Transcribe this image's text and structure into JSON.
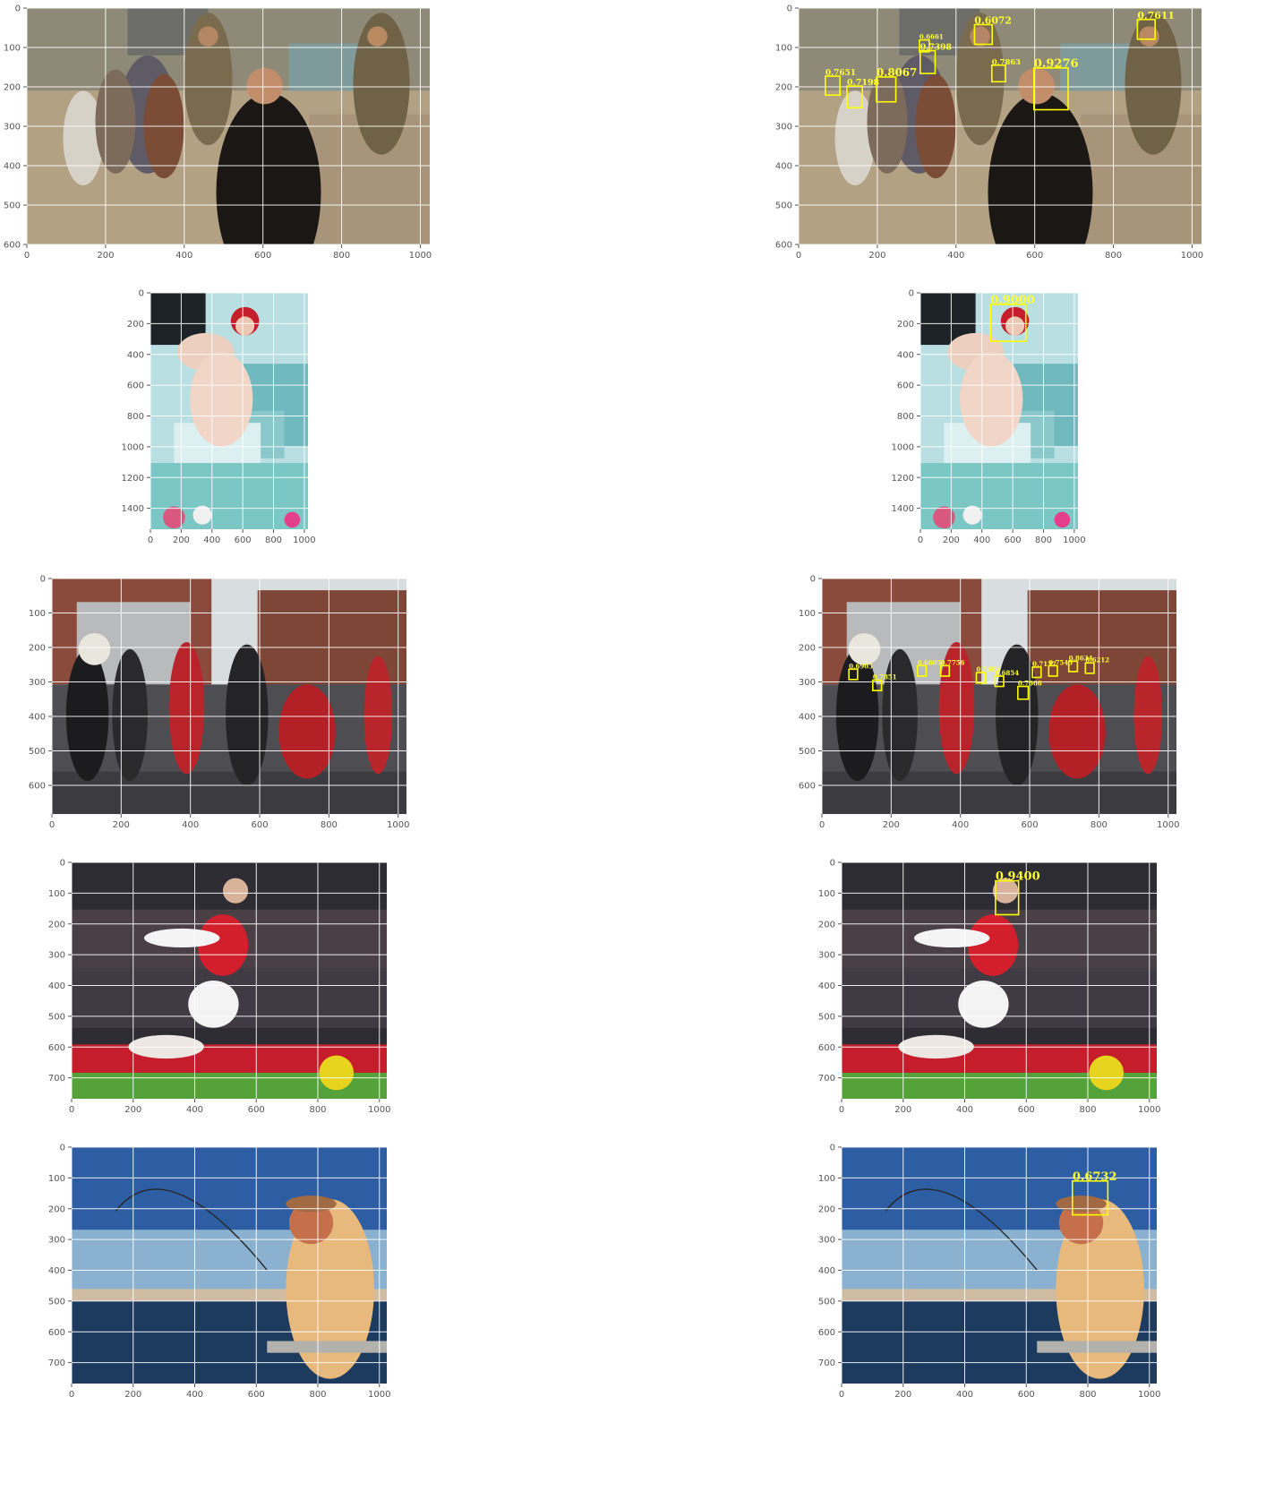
{
  "figure": {
    "background": "#ffffff",
    "grid_color": "#ffffff",
    "box_color": "#ffff00"
  },
  "rows": [
    {
      "id": "soldiers-children",
      "scene": "street-soldiers",
      "xticks": [
        0,
        200,
        400,
        600,
        800,
        1000
      ],
      "yticks": [
        0,
        100,
        200,
        300,
        400,
        500,
        600
      ],
      "xmax": 1024,
      "ymax": 600,
      "detections": [
        {
          "score": "0.6072",
          "x": 447,
          "y": 42,
          "w": 45,
          "h": 50
        },
        {
          "score": "0.7611",
          "x": 861,
          "y": 29,
          "w": 45,
          "h": 50
        },
        {
          "score": "0.6661",
          "x": 307,
          "y": 81,
          "w": 25,
          "h": 30
        },
        {
          "score": "0.7398",
          "x": 309,
          "y": 108,
          "w": 38,
          "h": 58
        },
        {
          "score": "0.7863",
          "x": 491,
          "y": 145,
          "w": 35,
          "h": 42
        },
        {
          "score": "0.9276",
          "x": 598,
          "y": 152,
          "w": 87,
          "h": 106
        },
        {
          "score": "0.7651",
          "x": 68,
          "y": 173,
          "w": 37,
          "h": 48
        },
        {
          "score": "0.8067",
          "x": 198,
          "y": 175,
          "w": 49,
          "h": 63
        },
        {
          "score": "0.7198",
          "x": 123,
          "y": 198,
          "w": 39,
          "h": 55
        }
      ]
    },
    {
      "id": "red-hair-woman",
      "scene": "bathroom",
      "xticks": [
        0,
        200,
        400,
        600,
        800,
        1000
      ],
      "yticks": [
        0,
        200,
        400,
        600,
        800,
        1000,
        1200,
        1400
      ],
      "xmax": 1024,
      "ymax": 1536,
      "detections": [
        {
          "score": "0.9000",
          "x": 455,
          "y": 75,
          "w": 230,
          "h": 240
        }
      ]
    },
    {
      "id": "brass-band",
      "scene": "alley-band",
      "xticks": [
        0,
        200,
        400,
        600,
        800,
        1000
      ],
      "yticks": [
        0,
        100,
        200,
        300,
        400,
        500,
        600
      ],
      "xmax": 1024,
      "ymax": 683,
      "detections": [
        {
          "score": "0.6905",
          "x": 78,
          "y": 263,
          "w": 25,
          "h": 30
        },
        {
          "score": "0.7851",
          "x": 147,
          "y": 295,
          "w": 25,
          "h": 30
        },
        {
          "score": "0.6605",
          "x": 276,
          "y": 253,
          "w": 25,
          "h": 30
        },
        {
          "score": "0.7756",
          "x": 343,
          "y": 253,
          "w": 25,
          "h": 30
        },
        {
          "score": "0.7696",
          "x": 446,
          "y": 273,
          "w": 25,
          "h": 30
        },
        {
          "score": "0.6854",
          "x": 500,
          "y": 283,
          "w": 25,
          "h": 30
        },
        {
          "score": "0.7666",
          "x": 566,
          "y": 313,
          "w": 30,
          "h": 37
        },
        {
          "score": "0.7137",
          "x": 608,
          "y": 257,
          "w": 25,
          "h": 30
        },
        {
          "score": "0.7545",
          "x": 655,
          "y": 253,
          "w": 25,
          "h": 30
        },
        {
          "score": "0.8634",
          "x": 713,
          "y": 240,
          "w": 25,
          "h": 30
        },
        {
          "score": "0.6212",
          "x": 761,
          "y": 245,
          "w": 25,
          "h": 30
        }
      ]
    },
    {
      "id": "football-player",
      "scene": "football",
      "xticks": [
        0,
        200,
        400,
        600,
        800,
        1000
      ],
      "yticks": [
        0,
        100,
        200,
        300,
        400,
        500,
        600,
        700
      ],
      "xmax": 1024,
      "ymax": 768,
      "detections": [
        {
          "score": "0.9400",
          "x": 500,
          "y": 60,
          "w": 75,
          "h": 110
        }
      ]
    },
    {
      "id": "fisherman",
      "scene": "fishing",
      "xticks": [
        0,
        200,
        400,
        600,
        800,
        1000
      ],
      "yticks": [
        0,
        100,
        200,
        300,
        400,
        500,
        600,
        700
      ],
      "xmax": 1024,
      "ymax": 768,
      "detections": [
        {
          "score": "0.6732",
          "x": 750,
          "y": 110,
          "w": 115,
          "h": 110
        }
      ]
    }
  ]
}
